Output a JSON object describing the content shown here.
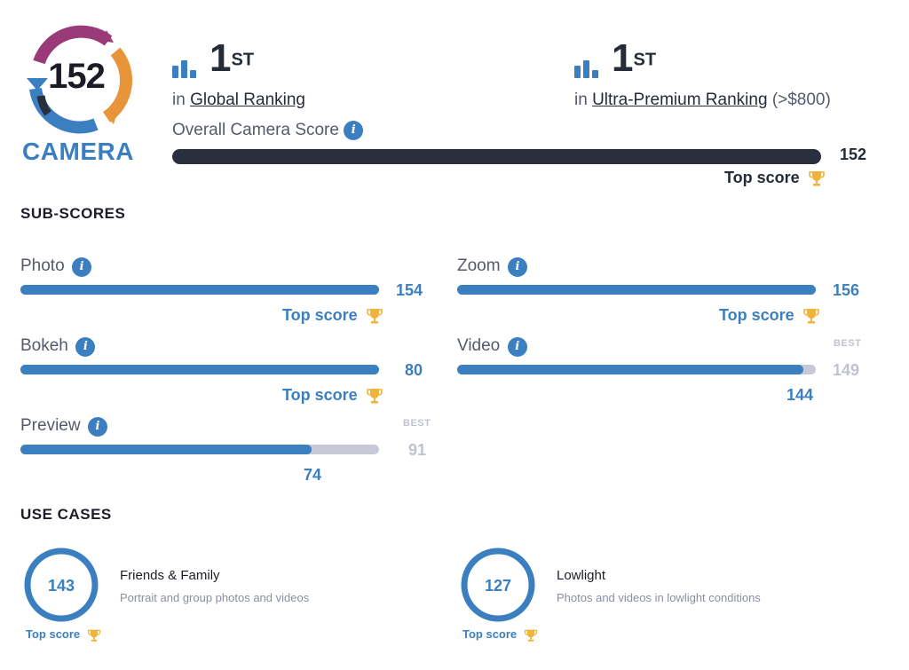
{
  "badge": {
    "score": "152",
    "label": "CAMERA",
    "colors": [
      "#9b3a78",
      "#e8953a",
      "#3b7fc1",
      "#2a2f3e"
    ]
  },
  "rankings": [
    {
      "number": "1",
      "suffix": "ST",
      "prefix": "in",
      "link": "Global Ranking",
      "extra": ""
    },
    {
      "number": "1",
      "suffix": "ST",
      "prefix": "in",
      "link": "Ultra-Premium Ranking",
      "extra": "(>$800)"
    }
  ],
  "overall": {
    "label": "Overall Camera Score",
    "value": "152",
    "top_score_label": "Top score",
    "fill": 1.0
  },
  "sub_scores": {
    "title": "SUB-SCORES",
    "items": [
      {
        "label": "Photo",
        "value": "154",
        "best": "",
        "fill": 1.0,
        "best_tag": "",
        "top_score": "Top score"
      },
      {
        "label": "Zoom",
        "value": "156",
        "best": "",
        "fill": 1.0,
        "best_tag": "",
        "top_score": "Top score"
      },
      {
        "label": "Bokeh",
        "value": "80",
        "best": "",
        "fill": 1.0,
        "best_tag": "",
        "top_score": "Top score"
      },
      {
        "label": "Video",
        "value": "144",
        "best": "149",
        "fill": 0.966,
        "best_tag": "BEST",
        "top_score": ""
      },
      {
        "label": "Preview",
        "value": "74",
        "best": "91",
        "fill": 0.813,
        "best_tag": "BEST",
        "top_score": ""
      }
    ]
  },
  "use_cases": {
    "title": "USE CASES",
    "items": [
      {
        "value": "143",
        "title": "Friends & Family",
        "description": "Portrait and group photos and videos",
        "top_score": "Top score"
      },
      {
        "value": "127",
        "title": "Lowlight",
        "description": "Photos and videos in lowlight conditions",
        "top_score": "Top score"
      }
    ]
  },
  "colors": {
    "accent": "#3b7fc1",
    "dark": "#2a2f3e",
    "track": "#c7cad6",
    "trophy": "#f0b43c"
  }
}
